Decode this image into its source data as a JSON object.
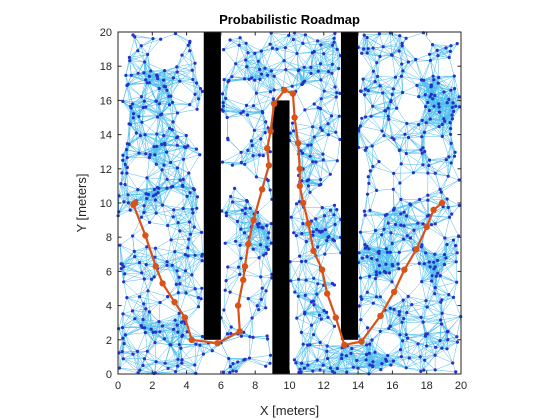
{
  "chart_data": {
    "type": "scatter",
    "title": "Probabilistic Roadmap",
    "xlabel": "X [meters]",
    "ylabel": "Y [meters]",
    "xlim": [
      0,
      20
    ],
    "ylim": [
      0,
      20
    ],
    "xticks": [
      "0",
      "2",
      "4",
      "6",
      "8",
      "10",
      "12",
      "14",
      "16",
      "18",
      "20"
    ],
    "yticks": [
      "0",
      "2",
      "4",
      "6",
      "8",
      "10",
      "12",
      "14",
      "16",
      "18",
      "20"
    ],
    "grid": false,
    "colors": {
      "edges": "#4dbeee",
      "nodes": "#2531c8",
      "path": "#d95319",
      "obstacles": "#000000"
    },
    "obstacles": [
      {
        "x": [
          5.0,
          6.0
        ],
        "y": [
          2.0,
          20.0
        ]
      },
      {
        "x": [
          9.0,
          10.0
        ],
        "y": [
          0.0,
          16.0
        ]
      },
      {
        "x": [
          13.0,
          14.0
        ],
        "y": [
          2.0,
          20.0
        ]
      }
    ],
    "roadmap": {
      "node_count_approx": 1000,
      "edge_color": "#4dbeee",
      "node_color": "#2531c8"
    },
    "series": [
      {
        "points": [
          [
            1.0,
            10.0
          ],
          [
            0.9,
            9.9
          ],
          [
            1.6,
            8.1
          ],
          [
            2.2,
            6.3
          ],
          [
            2.6,
            5.3
          ],
          [
            3.3,
            4.2
          ],
          [
            3.9,
            3.3
          ],
          [
            4.3,
            2.0
          ],
          [
            5.8,
            1.8
          ],
          [
            7.1,
            2.5
          ],
          [
            7.0,
            4.0
          ],
          [
            7.3,
            5.5
          ],
          [
            7.4,
            6.3
          ],
          [
            7.6,
            7.6
          ],
          [
            7.9,
            9.0
          ],
          [
            8.4,
            10.8
          ],
          [
            8.8,
            12.2
          ],
          [
            8.7,
            13.2
          ],
          [
            8.9,
            14.2
          ],
          [
            9.1,
            15.8
          ],
          [
            9.7,
            16.6
          ],
          [
            10.2,
            16.4
          ],
          [
            10.3,
            15.0
          ],
          [
            10.5,
            13.5
          ],
          [
            10.6,
            12.0
          ],
          [
            10.6,
            11.0
          ],
          [
            10.8,
            10.0
          ],
          [
            11.1,
            8.8
          ],
          [
            11.4,
            7.2
          ],
          [
            11.9,
            6.1
          ],
          [
            12.2,
            4.7
          ],
          [
            12.7,
            3.3
          ],
          [
            13.2,
            1.7
          ],
          [
            14.2,
            1.9
          ],
          [
            15.3,
            3.4
          ],
          [
            16.1,
            4.8
          ],
          [
            16.7,
            6.1
          ],
          [
            17.4,
            7.3
          ],
          [
            18.0,
            8.6
          ],
          [
            18.4,
            9.6
          ],
          [
            18.9,
            10.0
          ]
        ]
      }
    ]
  }
}
